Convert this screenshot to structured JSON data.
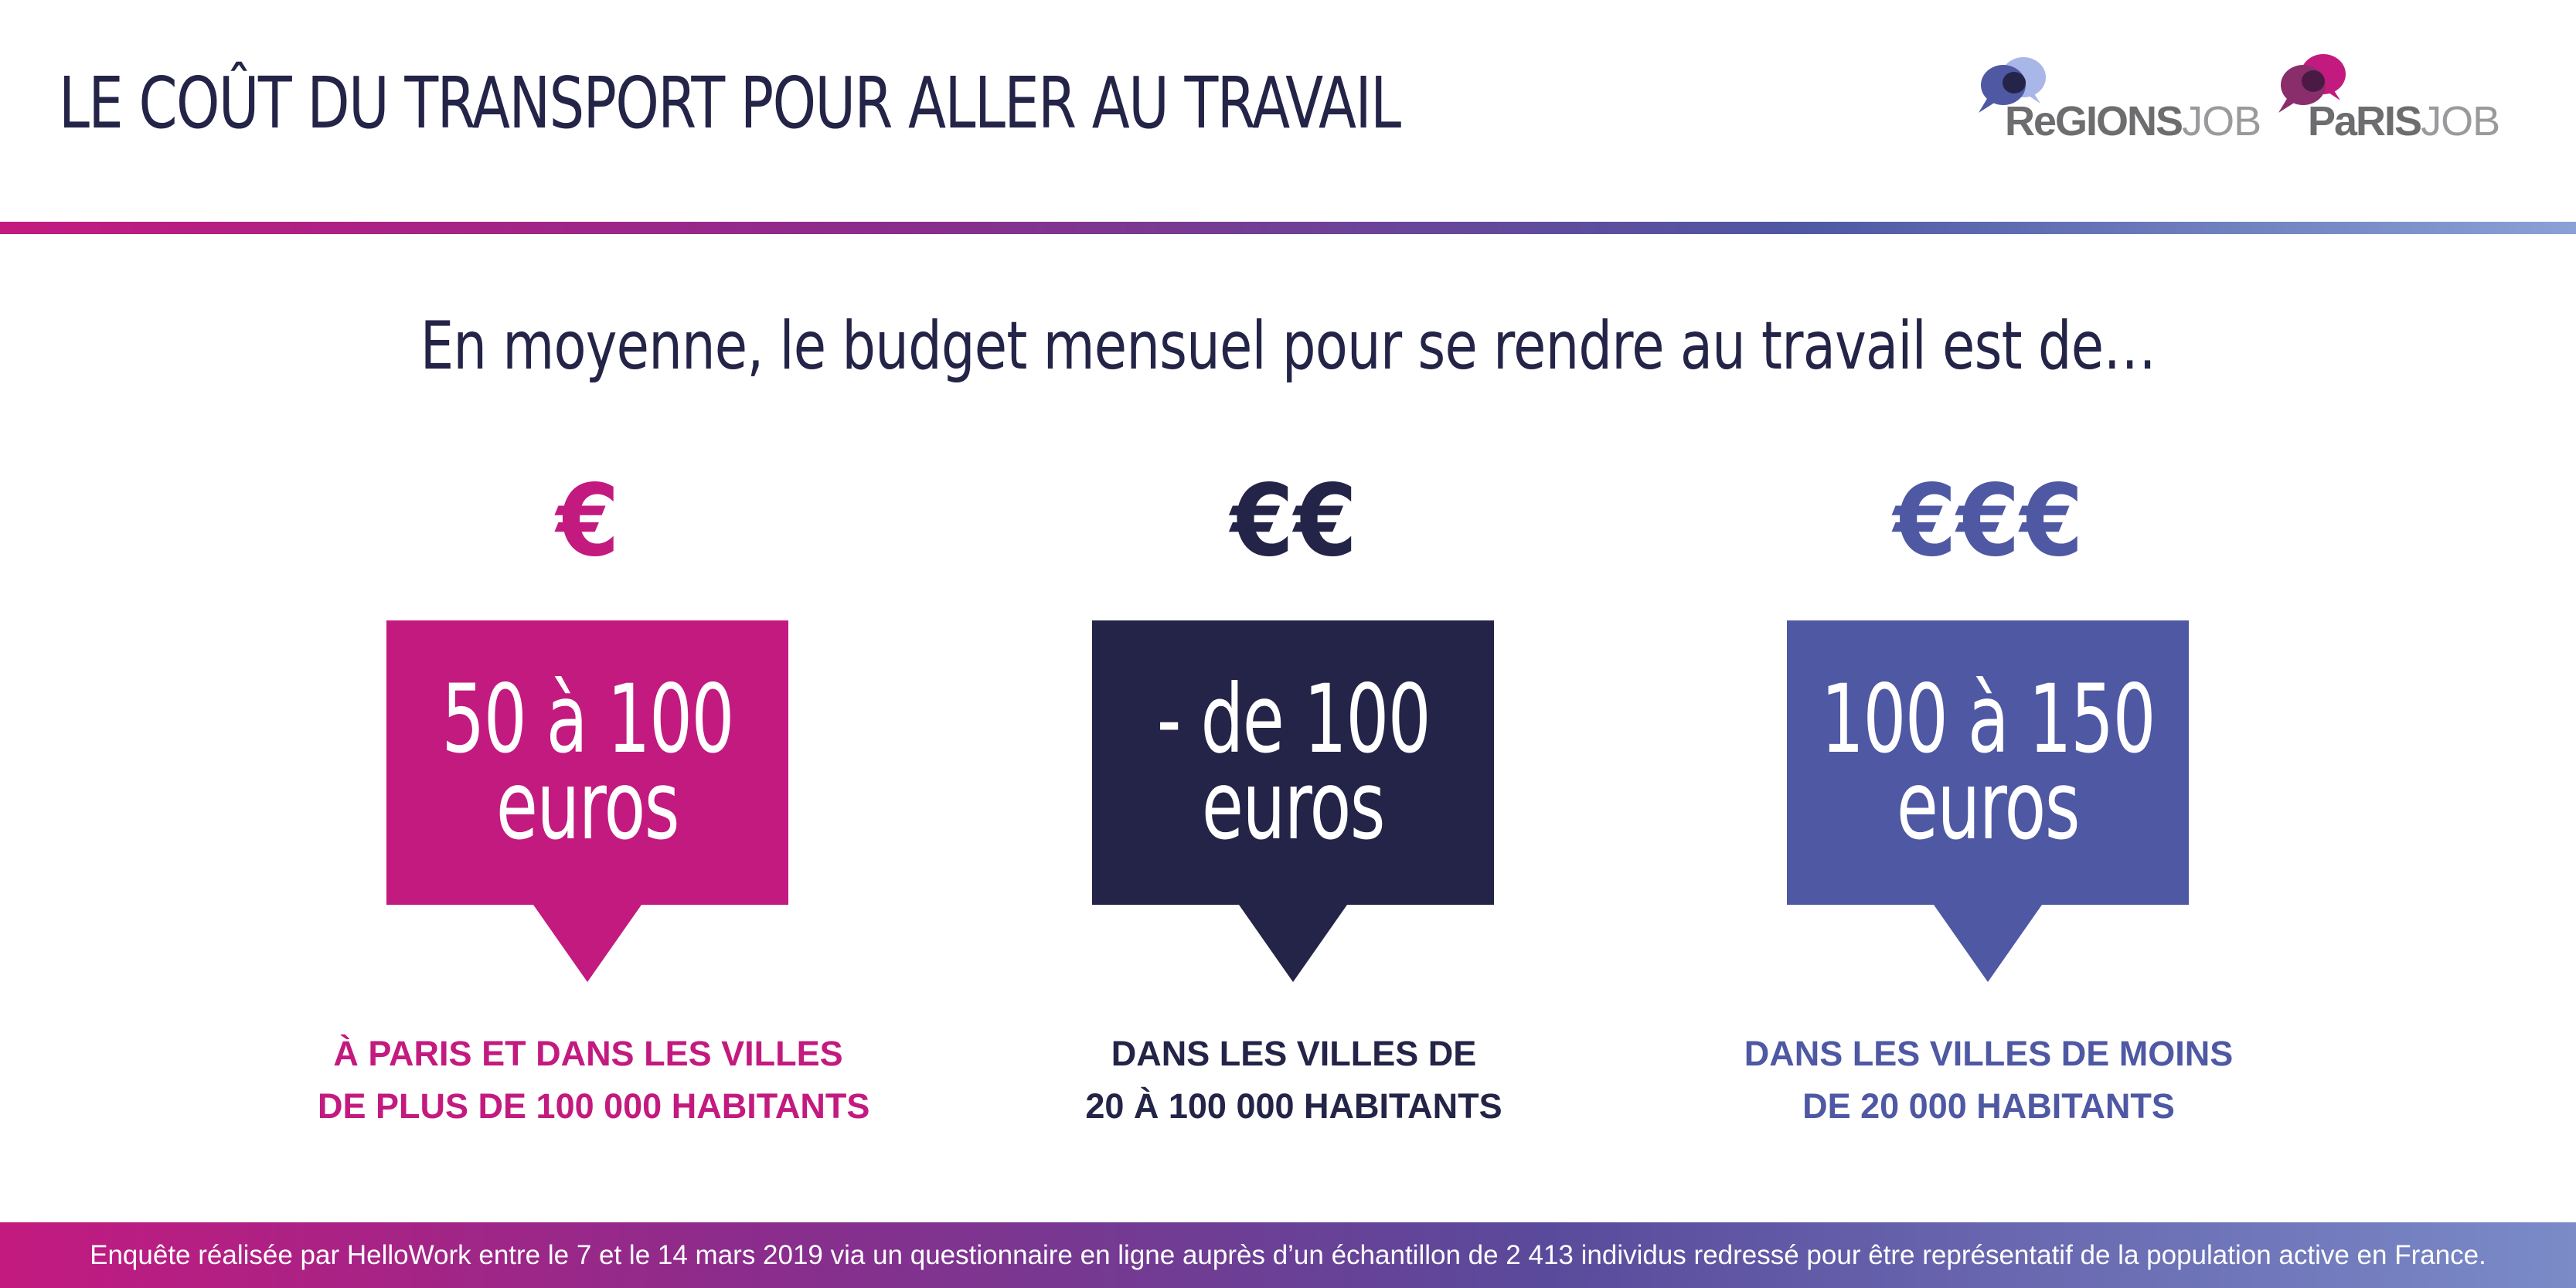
{
  "header": {
    "title": "LE COÛT DU TRANSPORT POUR ALLER AU TRAVAIL"
  },
  "logos": {
    "regions": {
      "main": "ReGIONS",
      "suffix": "JOB",
      "icon": "speech-bubbles-blue-icon"
    },
    "paris": {
      "main": "PaRIS",
      "suffix": "JOB",
      "icon": "speech-bubbles-purple-icon"
    }
  },
  "subtitle": "En moyenne, le budget mensuel pour se rendre au travail est de…",
  "columns": [
    {
      "euro_symbols": "€",
      "amount_line1": "50 à 100",
      "amount_line2": "euros",
      "caption_line1": "À PARIS ET DANS LES VILLES",
      "caption_line2": "DE PLUS DE 100 000 HABITANTS",
      "color": "#c31a7f"
    },
    {
      "euro_symbols": "€€",
      "amount_line1": "- de 100",
      "amount_line2": "euros",
      "caption_line1": "DANS LES VILLES DE",
      "caption_line2": "20 À 100 000 HABITANTS",
      "color": "#232447"
    },
    {
      "euro_symbols": "€€€",
      "amount_line1": "100 à 150",
      "amount_line2": "euros",
      "caption_line1": "DANS LES VILLES DE MOINS",
      "caption_line2": "DE 20 000 HABITANTS",
      "color": "#4e58a3"
    }
  ],
  "footer": "Enquête réalisée par HelloWork entre le 7 et le 14 mars 2019 via un questionnaire en ligne auprès d’un échantillon de 2 413 individus redressé pour être représentatif de la population active en France.",
  "colors": {
    "navy": "#232447",
    "magenta": "#c31a7f",
    "indigo": "#4e58a3"
  }
}
